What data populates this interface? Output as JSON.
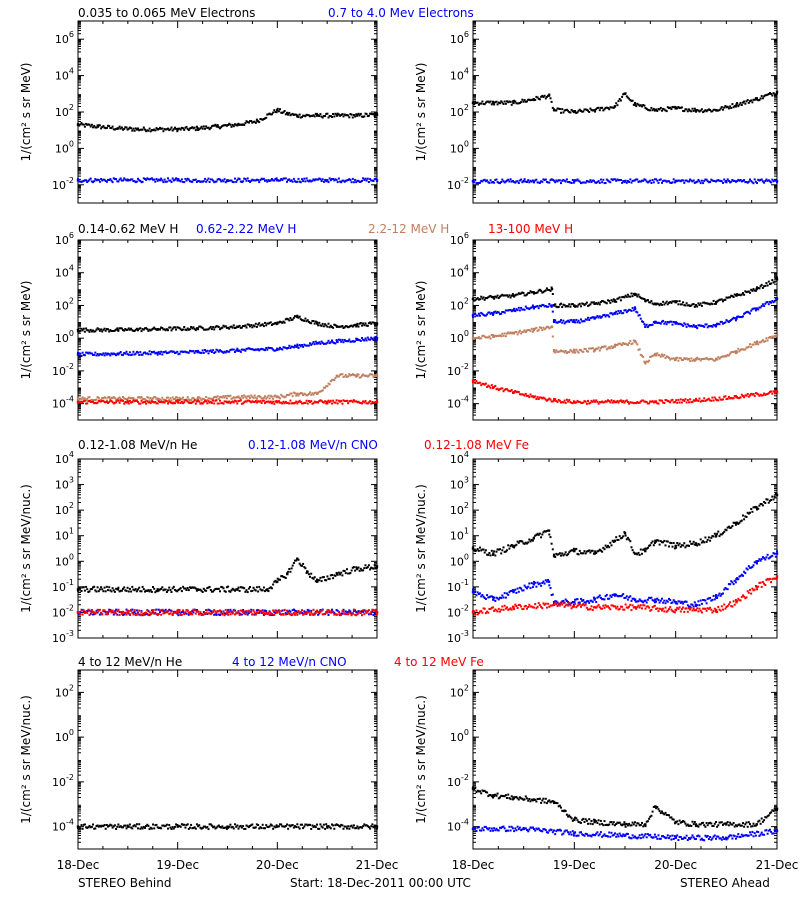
{
  "footer": {
    "left": "STEREO Behind",
    "center": "Start: 18-Dec-2011 00:00 UTC",
    "right": "STEREO Ahead"
  },
  "x_axis": {
    "ticks": [
      "18-Dec",
      "19-Dec",
      "20-Dec",
      "21-Dec"
    ],
    "range_days": [
      0,
      3
    ]
  },
  "rows": [
    {
      "legend": [
        {
          "text": "0.035 to 0.065 MeV Electrons",
          "color": "#000000"
        },
        {
          "text": "0.7 to 4.0 Mev Electrons",
          "color": "#0000ff"
        }
      ],
      "ylabel": "1/(cm² s sr MeV)",
      "ylog_range": [
        -3,
        7
      ],
      "ytick_exps": [
        -2,
        0,
        2,
        4,
        6
      ]
    },
    {
      "legend": [
        {
          "text": "0.14-0.62 MeV H",
          "color": "#000000"
        },
        {
          "text": "0.62-2.22 MeV H",
          "color": "#0000ff"
        },
        {
          "text": "2.2-12 MeV H",
          "color": "#c08060"
        },
        {
          "text": "13-100 MeV H",
          "color": "#ff0000"
        }
      ],
      "ylabel": "1/(cm² s sr MeV)",
      "ylog_range": [
        -5,
        6
      ],
      "ytick_exps": [
        -4,
        -2,
        0,
        2,
        4,
        6
      ]
    },
    {
      "legend": [
        {
          "text": "0.12-1.08 MeV/n He",
          "color": "#000000"
        },
        {
          "text": "0.12-1.08 MeV/n CNO",
          "color": "#0000ff"
        },
        {
          "text": "0.12-1.08 MeV Fe",
          "color": "#ff0000"
        }
      ],
      "ylabel": "1/(cm² s sr MeV/nuc.)",
      "ylog_range": [
        -3,
        4
      ],
      "ytick_exps": [
        -3,
        -2,
        -1,
        0,
        1,
        2,
        3,
        4
      ]
    },
    {
      "legend": [
        {
          "text": "4 to 12 MeV/n He",
          "color": "#000000"
        },
        {
          "text": "4 to 12 MeV/n CNO",
          "color": "#0000ff"
        },
        {
          "text": "4 to 12 MeV Fe",
          "color": "#ff0000"
        }
      ],
      "ylabel": "1/(cm² s sr MeV/nuc.)",
      "ylog_range": [
        -5,
        3
      ],
      "ytick_exps": [
        -4,
        -2,
        0,
        2
      ]
    }
  ],
  "chart_data": [
    {
      "type": "scatter",
      "panel": "behind-electrons",
      "ylog": true,
      "series": [
        {
          "color": "#000000",
          "x": [
            0,
            0.2,
            0.4,
            0.6,
            0.8,
            1.0,
            1.2,
            1.4,
            1.6,
            1.8,
            2.0,
            2.1,
            2.2,
            2.4,
            2.6,
            2.8,
            3.0
          ],
          "y": [
            1.3,
            1.2,
            1.1,
            1.05,
            1.05,
            1.05,
            1.1,
            1.2,
            1.3,
            1.5,
            2.1,
            1.9,
            1.8,
            1.8,
            1.8,
            1.8,
            1.85
          ]
        },
        {
          "color": "#0000ff",
          "x": [
            0,
            0.5,
            1.0,
            1.5,
            2.0,
            2.5,
            3.0
          ],
          "y": [
            -1.75,
            -1.75,
            -1.75,
            -1.75,
            -1.75,
            -1.75,
            -1.75
          ]
        }
      ]
    },
    {
      "type": "scatter",
      "panel": "ahead-electrons",
      "ylog": true,
      "series": [
        {
          "color": "#000000",
          "x": [
            0,
            0.2,
            0.4,
            0.6,
            0.75,
            0.8,
            1.0,
            1.2,
            1.4,
            1.5,
            1.6,
            1.8,
            2.0,
            2.2,
            2.4,
            2.6,
            2.8,
            3.0
          ],
          "y": [
            2.5,
            2.5,
            2.5,
            2.7,
            2.9,
            2.1,
            2.0,
            2.1,
            2.3,
            3.0,
            2.4,
            2.1,
            2.2,
            2.1,
            2.1,
            2.4,
            2.7,
            3.1
          ]
        },
        {
          "color": "#0000ff",
          "x": [
            0,
            0.5,
            1.0,
            1.5,
            2.0,
            2.5,
            3.0
          ],
          "y": [
            -1.8,
            -1.8,
            -1.8,
            -1.8,
            -1.8,
            -1.8,
            -1.8
          ]
        }
      ]
    },
    {
      "type": "scatter",
      "panel": "behind-protons",
      "ylog": true,
      "series": [
        {
          "color": "#000000",
          "x": [
            0,
            0.4,
            0.8,
            1.2,
            1.6,
            2.0,
            2.2,
            2.4,
            2.6,
            2.8,
            3.0
          ],
          "y": [
            0.5,
            0.5,
            0.55,
            0.6,
            0.7,
            0.9,
            1.3,
            0.9,
            0.7,
            0.8,
            0.9
          ]
        },
        {
          "color": "#0000ff",
          "x": [
            0,
            0.4,
            0.8,
            1.2,
            1.6,
            2.0,
            2.2,
            2.4,
            2.6,
            2.8,
            3.0
          ],
          "y": [
            -1.0,
            -0.95,
            -0.9,
            -0.85,
            -0.75,
            -0.65,
            -0.5,
            -0.3,
            -0.2,
            -0.1,
            0.0
          ]
        },
        {
          "color": "#c08060",
          "x": [
            0,
            0.4,
            0.8,
            1.2,
            1.6,
            2.0,
            2.2,
            2.4,
            2.6,
            2.8,
            3.0
          ],
          "y": [
            -3.7,
            -3.7,
            -3.7,
            -3.7,
            -3.6,
            -3.6,
            -3.4,
            -3.4,
            -2.3,
            -2.3,
            -2.3
          ]
        },
        {
          "color": "#ff0000",
          "x": [
            0,
            0.5,
            1.0,
            1.5,
            2.0,
            2.5,
            3.0
          ],
          "y": [
            -3.9,
            -3.9,
            -3.9,
            -3.9,
            -3.9,
            -3.9,
            -3.9
          ]
        }
      ]
    },
    {
      "type": "scatter",
      "panel": "ahead-protons",
      "ylog": true,
      "series": [
        {
          "color": "#000000",
          "x": [
            0,
            0.2,
            0.4,
            0.6,
            0.78,
            0.8,
            1.0,
            1.2,
            1.4,
            1.6,
            1.7,
            1.8,
            2.0,
            2.2,
            2.4,
            2.6,
            2.8,
            3.0
          ],
          "y": [
            2.4,
            2.5,
            2.6,
            2.8,
            3.0,
            2.0,
            2.0,
            2.1,
            2.3,
            2.7,
            2.3,
            2.1,
            2.2,
            2.0,
            2.2,
            2.6,
            3.0,
            3.6
          ]
        },
        {
          "color": "#0000ff",
          "x": [
            0,
            0.2,
            0.4,
            0.6,
            0.78,
            0.8,
            1.0,
            1.2,
            1.4,
            1.6,
            1.7,
            1.8,
            2.0,
            2.2,
            2.4,
            2.6,
            2.8,
            3.0
          ],
          "y": [
            1.4,
            1.5,
            1.7,
            1.9,
            2.0,
            1.0,
            1.0,
            1.2,
            1.5,
            1.8,
            0.7,
            1.0,
            0.9,
            0.7,
            0.8,
            1.2,
            1.8,
            2.4
          ]
        },
        {
          "color": "#c08060",
          "x": [
            0,
            0.2,
            0.4,
            0.6,
            0.78,
            0.8,
            1.0,
            1.2,
            1.4,
            1.6,
            1.7,
            1.8,
            2.0,
            2.2,
            2.4,
            2.6,
            2.8,
            3.0
          ],
          "y": [
            0.0,
            0.1,
            0.3,
            0.5,
            0.7,
            -0.8,
            -0.8,
            -0.7,
            -0.5,
            -0.2,
            -1.5,
            -1.0,
            -1.3,
            -1.3,
            -1.3,
            -0.8,
            -0.3,
            0.2
          ]
        },
        {
          "color": "#ff0000",
          "x": [
            0,
            0.2,
            0.4,
            0.6,
            0.8,
            1.0,
            1.4,
            1.8,
            2.2,
            2.6,
            3.0
          ],
          "y": [
            -2.6,
            -3.0,
            -3.3,
            -3.6,
            -3.8,
            -3.9,
            -3.9,
            -3.9,
            -3.8,
            -3.6,
            -3.3
          ]
        }
      ]
    },
    {
      "type": "scatter",
      "panel": "behind-heavy-low",
      "ylog": true,
      "series": [
        {
          "color": "#000000",
          "x": [
            0,
            0.4,
            0.8,
            1.2,
            1.6,
            1.9,
            2.0,
            2.1,
            2.2,
            2.3,
            2.4,
            2.6,
            2.8,
            3.0
          ],
          "y": [
            -1.1,
            -1.1,
            -1.1,
            -1.1,
            -1.1,
            -1.1,
            -0.8,
            -0.5,
            0.1,
            -0.4,
            -0.8,
            -0.5,
            -0.3,
            -0.2
          ]
        },
        {
          "color": "#0000ff",
          "x": [
            0,
            0.5,
            1.0,
            1.5,
            2.0,
            2.5,
            3.0
          ],
          "y": [
            -2.0,
            -2.0,
            -2.0,
            -2.0,
            -2.0,
            -2.0,
            -2.0
          ]
        },
        {
          "color": "#ff0000",
          "x": [
            0,
            0.5,
            1.0,
            1.5,
            2.0,
            2.5,
            3.0
          ],
          "y": [
            -2.0,
            -2.0,
            -2.0,
            -2.0,
            -2.0,
            -2.0,
            -2.0
          ]
        }
      ]
    },
    {
      "type": "scatter",
      "panel": "ahead-heavy-low",
      "ylog": true,
      "series": [
        {
          "color": "#000000",
          "x": [
            0,
            0.2,
            0.4,
            0.6,
            0.75,
            0.8,
            1.0,
            1.2,
            1.4,
            1.5,
            1.6,
            1.7,
            1.8,
            2.0,
            2.2,
            2.4,
            2.6,
            2.8,
            3.0
          ],
          "y": [
            0.5,
            0.3,
            0.6,
            0.9,
            1.2,
            0.2,
            0.4,
            0.3,
            0.8,
            1.1,
            0.3,
            0.4,
            0.8,
            0.6,
            0.7,
            1.0,
            1.5,
            2.1,
            2.6
          ]
        },
        {
          "color": "#0000ff",
          "x": [
            0,
            0.2,
            0.4,
            0.6,
            0.75,
            0.8,
            1.0,
            1.2,
            1.4,
            1.6,
            1.8,
            2.0,
            2.2,
            2.4,
            2.6,
            2.8,
            3.0
          ],
          "y": [
            -1.2,
            -1.5,
            -1.2,
            -0.9,
            -0.8,
            -1.6,
            -1.6,
            -1.5,
            -1.3,
            -1.5,
            -1.5,
            -1.6,
            -1.7,
            -1.4,
            -0.7,
            0.0,
            0.3
          ]
        },
        {
          "color": "#ff0000",
          "x": [
            0,
            0.4,
            0.8,
            1.2,
            1.6,
            2.0,
            2.4,
            2.6,
            2.8,
            3.0
          ],
          "y": [
            -2.0,
            -1.8,
            -1.7,
            -1.8,
            -1.8,
            -1.9,
            -1.9,
            -1.6,
            -1.0,
            -0.6
          ]
        }
      ]
    },
    {
      "type": "scatter",
      "panel": "behind-heavy-high",
      "ylog": true,
      "series": [
        {
          "color": "#000000",
          "x": [
            0,
            0.5,
            1.0,
            1.5,
            2.0,
            2.5,
            3.0
          ],
          "y": [
            -4.0,
            -4.0,
            -4.0,
            -4.0,
            -4.0,
            -4.0,
            -4.0
          ]
        }
      ]
    },
    {
      "type": "scatter",
      "panel": "ahead-heavy-high",
      "ylog": true,
      "series": [
        {
          "color": "#000000",
          "x": [
            0,
            0.2,
            0.4,
            0.6,
            0.8,
            0.9,
            1.0,
            1.2,
            1.5,
            1.7,
            1.8,
            2.0,
            2.2,
            2.5,
            2.8,
            3.0
          ],
          "y": [
            -2.3,
            -2.6,
            -2.7,
            -2.8,
            -2.9,
            -3.3,
            -3.7,
            -3.8,
            -3.9,
            -3.9,
            -3.1,
            -3.8,
            -3.9,
            -3.9,
            -3.9,
            -3.2
          ]
        },
        {
          "color": "#0000ff",
          "x": [
            0,
            0.5,
            1.0,
            1.5,
            2.0,
            2.5,
            3.0
          ],
          "y": [
            -4.1,
            -4.1,
            -4.3,
            -4.4,
            -4.5,
            -4.5,
            -4.2
          ]
        }
      ]
    }
  ]
}
